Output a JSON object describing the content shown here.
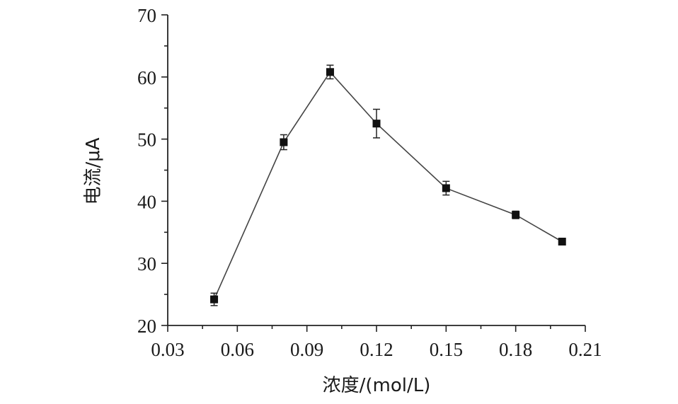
{
  "chart_data": {
    "type": "line",
    "title": "",
    "xlabel": "浓度/(mol/L)",
    "ylabel": "电流/μA",
    "xlim": [
      0.03,
      0.21
    ],
    "ylim": [
      20,
      70
    ],
    "xticks": [
      "0.03",
      "0.06",
      "0.09",
      "0.12",
      "0.15",
      "0.18",
      "0.21"
    ],
    "yticks": [
      "20",
      "30",
      "40",
      "50",
      "60",
      "70"
    ],
    "grid": false,
    "legend": "none",
    "marker": "square",
    "series": [
      {
        "x": [
          0.05,
          0.08,
          0.1,
          0.12,
          0.15,
          0.18,
          0.2
        ],
        "y": [
          24.2,
          49.5,
          60.8,
          52.5,
          42.1,
          37.8,
          33.5
        ],
        "error": [
          1.0,
          1.2,
          1.1,
          2.3,
          1.1,
          0.6,
          0.3
        ]
      }
    ]
  }
}
